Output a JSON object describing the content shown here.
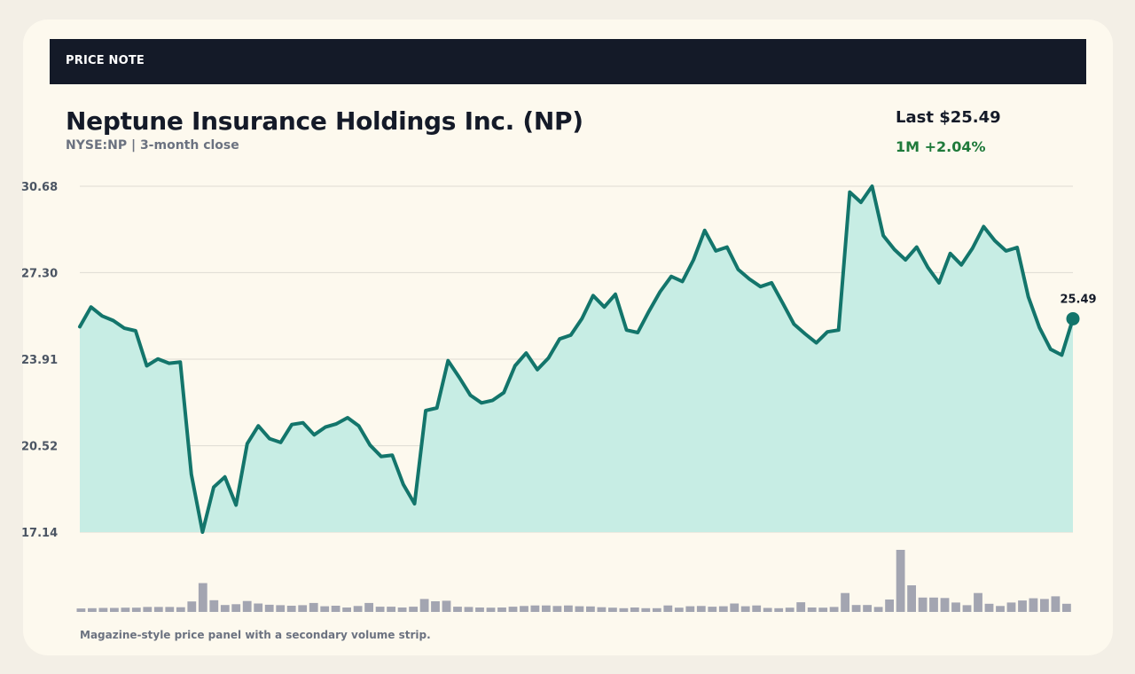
{
  "header": {
    "label": "PRICE NOTE"
  },
  "title": "Neptune Insurance Holdings Inc. (NP)",
  "subtitle": "NYSE:NP | 3-month close",
  "summary": {
    "last": "Last $25.49",
    "change": "1M +2.04%",
    "change_color": "#1f7a3a"
  },
  "footnote": "Magazine-style price panel with a secondary volume strip.",
  "colors": {
    "line": "#13756b",
    "fill": "#c7ede4",
    "volume": "#a3a5b1",
    "grid": "#dedbd2"
  },
  "chart_data": {
    "type": "area",
    "ylim": [
      17.14,
      30.68
    ],
    "yticks": [
      "30.68",
      "27.30",
      "23.91",
      "20.52",
      "17.14"
    ],
    "grid": true,
    "end_label": "25.49",
    "series": [
      {
        "values": [
          25.18,
          25.95,
          25.6,
          25.42,
          25.12,
          25.02,
          23.65,
          23.92,
          23.75,
          23.8,
          19.4,
          17.14,
          18.9,
          19.3,
          18.2,
          20.6,
          21.3,
          20.8,
          20.65,
          21.35,
          21.42,
          20.95,
          21.25,
          21.38,
          21.62,
          21.3,
          20.55,
          20.1,
          20.15,
          19.0,
          18.25,
          21.9,
          22.0,
          23.85,
          23.2,
          22.5,
          22.2,
          22.3,
          22.6,
          23.65,
          24.15,
          23.5,
          23.95,
          24.7,
          24.85,
          25.5,
          26.4,
          25.95,
          26.45,
          25.05,
          24.95,
          25.78,
          26.55,
          27.15,
          26.95,
          27.8,
          28.95,
          28.15,
          28.3,
          27.42,
          27.05,
          26.75,
          26.9,
          26.1,
          25.28,
          24.9,
          24.55,
          24.98,
          25.05,
          30.45,
          30.05,
          30.68,
          28.75,
          28.2,
          27.8,
          28.3,
          27.5,
          26.9,
          28.05,
          27.6,
          28.25,
          29.1,
          28.55,
          28.15,
          28.28,
          26.35,
          25.15,
          24.3,
          24.07,
          25.49
        ]
      }
    ],
    "volume": [
      1.4,
      1.5,
      1.6,
      1.6,
      1.7,
      1.7,
      2.0,
      2.0,
      2.0,
      1.9,
      4.2,
      11.6,
      4.7,
      2.8,
      3.1,
      4.4,
      3.4,
      2.9,
      2.7,
      2.5,
      2.7,
      3.6,
      2.3,
      2.5,
      1.8,
      2.4,
      3.6,
      2.1,
      2.1,
      1.8,
      2.1,
      5.2,
      4.3,
      4.5,
      2.1,
      2.0,
      1.8,
      1.7,
      1.8,
      2.1,
      2.4,
      2.6,
      2.6,
      2.4,
      2.6,
      2.3,
      2.2,
      1.9,
      1.7,
      1.5,
      1.8,
      1.5,
      1.5,
      2.6,
      1.7,
      2.3,
      2.4,
      2.1,
      2.3,
      3.4,
      2.3,
      2.6,
      1.6,
      1.5,
      1.7,
      3.9,
      1.8,
      1.7,
      2.0,
      7.6,
      2.8,
      2.8,
      2.0,
      5.0,
      25.0,
      10.7,
      5.8,
      5.8,
      5.6,
      3.8,
      2.7,
      7.6,
      3.3,
      2.4,
      3.8,
      4.6,
      5.5,
      5.2,
      6.3,
      3.3
    ]
  }
}
